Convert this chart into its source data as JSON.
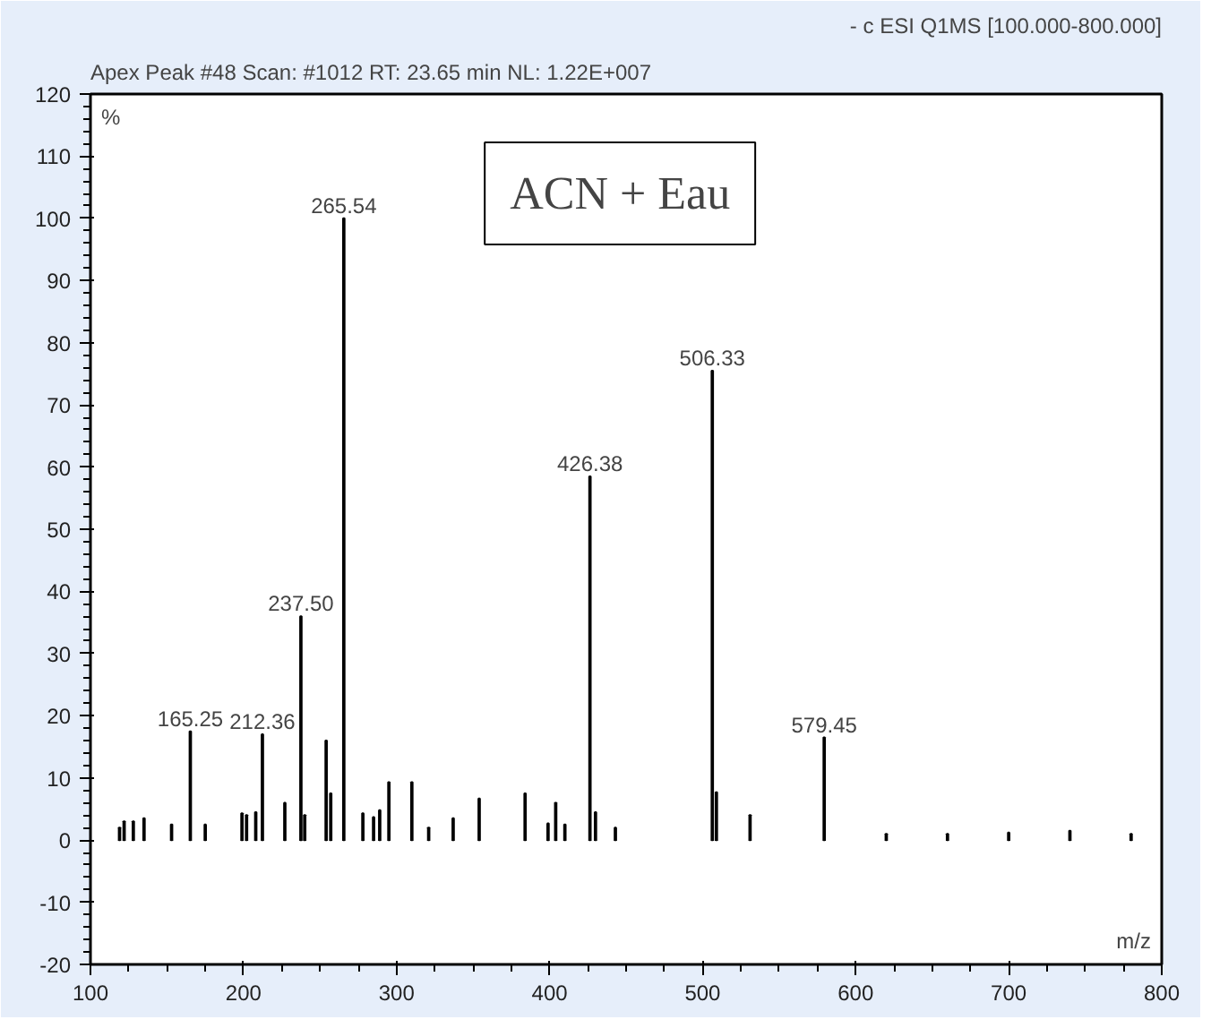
{
  "chart_data": {
    "type": "bar",
    "title": "Apex Peak #48 Scan: #1012  RT: 23.65 min  NL: 1.22E+007",
    "subtitle": "- c ESI Q1MS [100.000-800.000]",
    "xlabel": "m/z",
    "ylabel": "%",
    "annotations": [
      "ACN + Eau",
      {
        "text": "165.25",
        "x": 165.25,
        "y": 17.5
      },
      {
        "text": "212.36",
        "x": 212.36,
        "y": 17
      },
      {
        "text": "237.50",
        "x": 237.5,
        "y": 36
      },
      {
        "text": "265.54",
        "x": 265.54,
        "y": 100
      },
      {
        "text": "426.38",
        "x": 426.38,
        "y": 58.5
      },
      {
        "text": "506.33",
        "x": 506.33,
        "y": 75.5
      },
      {
        "text": "579.45",
        "x": 579.45,
        "y": 16.5
      }
    ],
    "color": "#000000",
    "x": [
      119,
      122,
      128,
      135,
      153,
      165.25,
      175,
      199,
      202,
      208,
      212.36,
      227,
      237.5,
      240,
      254,
      257,
      265.54,
      278,
      285,
      289,
      295,
      310,
      321,
      337,
      354,
      384,
      399,
      404,
      410,
      426.38,
      430,
      443,
      506.33,
      509,
      531,
      579.45,
      620,
      660,
      700,
      740,
      780
    ],
    "values": [
      2,
      3,
      3,
      3.5,
      2.5,
      17.5,
      2.5,
      4.3,
      4,
      4.5,
      17,
      6,
      36,
      4,
      16,
      7.5,
      100,
      4.3,
      3.7,
      4.8,
      9.3,
      9.3,
      2,
      3.5,
      6.7,
      7.5,
      2.7,
      6,
      2.5,
      58.5,
      4.5,
      2,
      75.5,
      7.7,
      4,
      16.5,
      1,
      1,
      1.2,
      1.5,
      1
    ],
    "xlim": [
      100,
      800
    ],
    "xticks": [
      100,
      200,
      300,
      400,
      500,
      600,
      700,
      800
    ],
    "ylim": [
      -20,
      120
    ],
    "yticks": [
      -20,
      -10,
      0,
      10,
      20,
      30,
      40,
      50,
      60,
      70,
      80,
      90,
      100,
      110,
      120
    ],
    "grid": false
  }
}
